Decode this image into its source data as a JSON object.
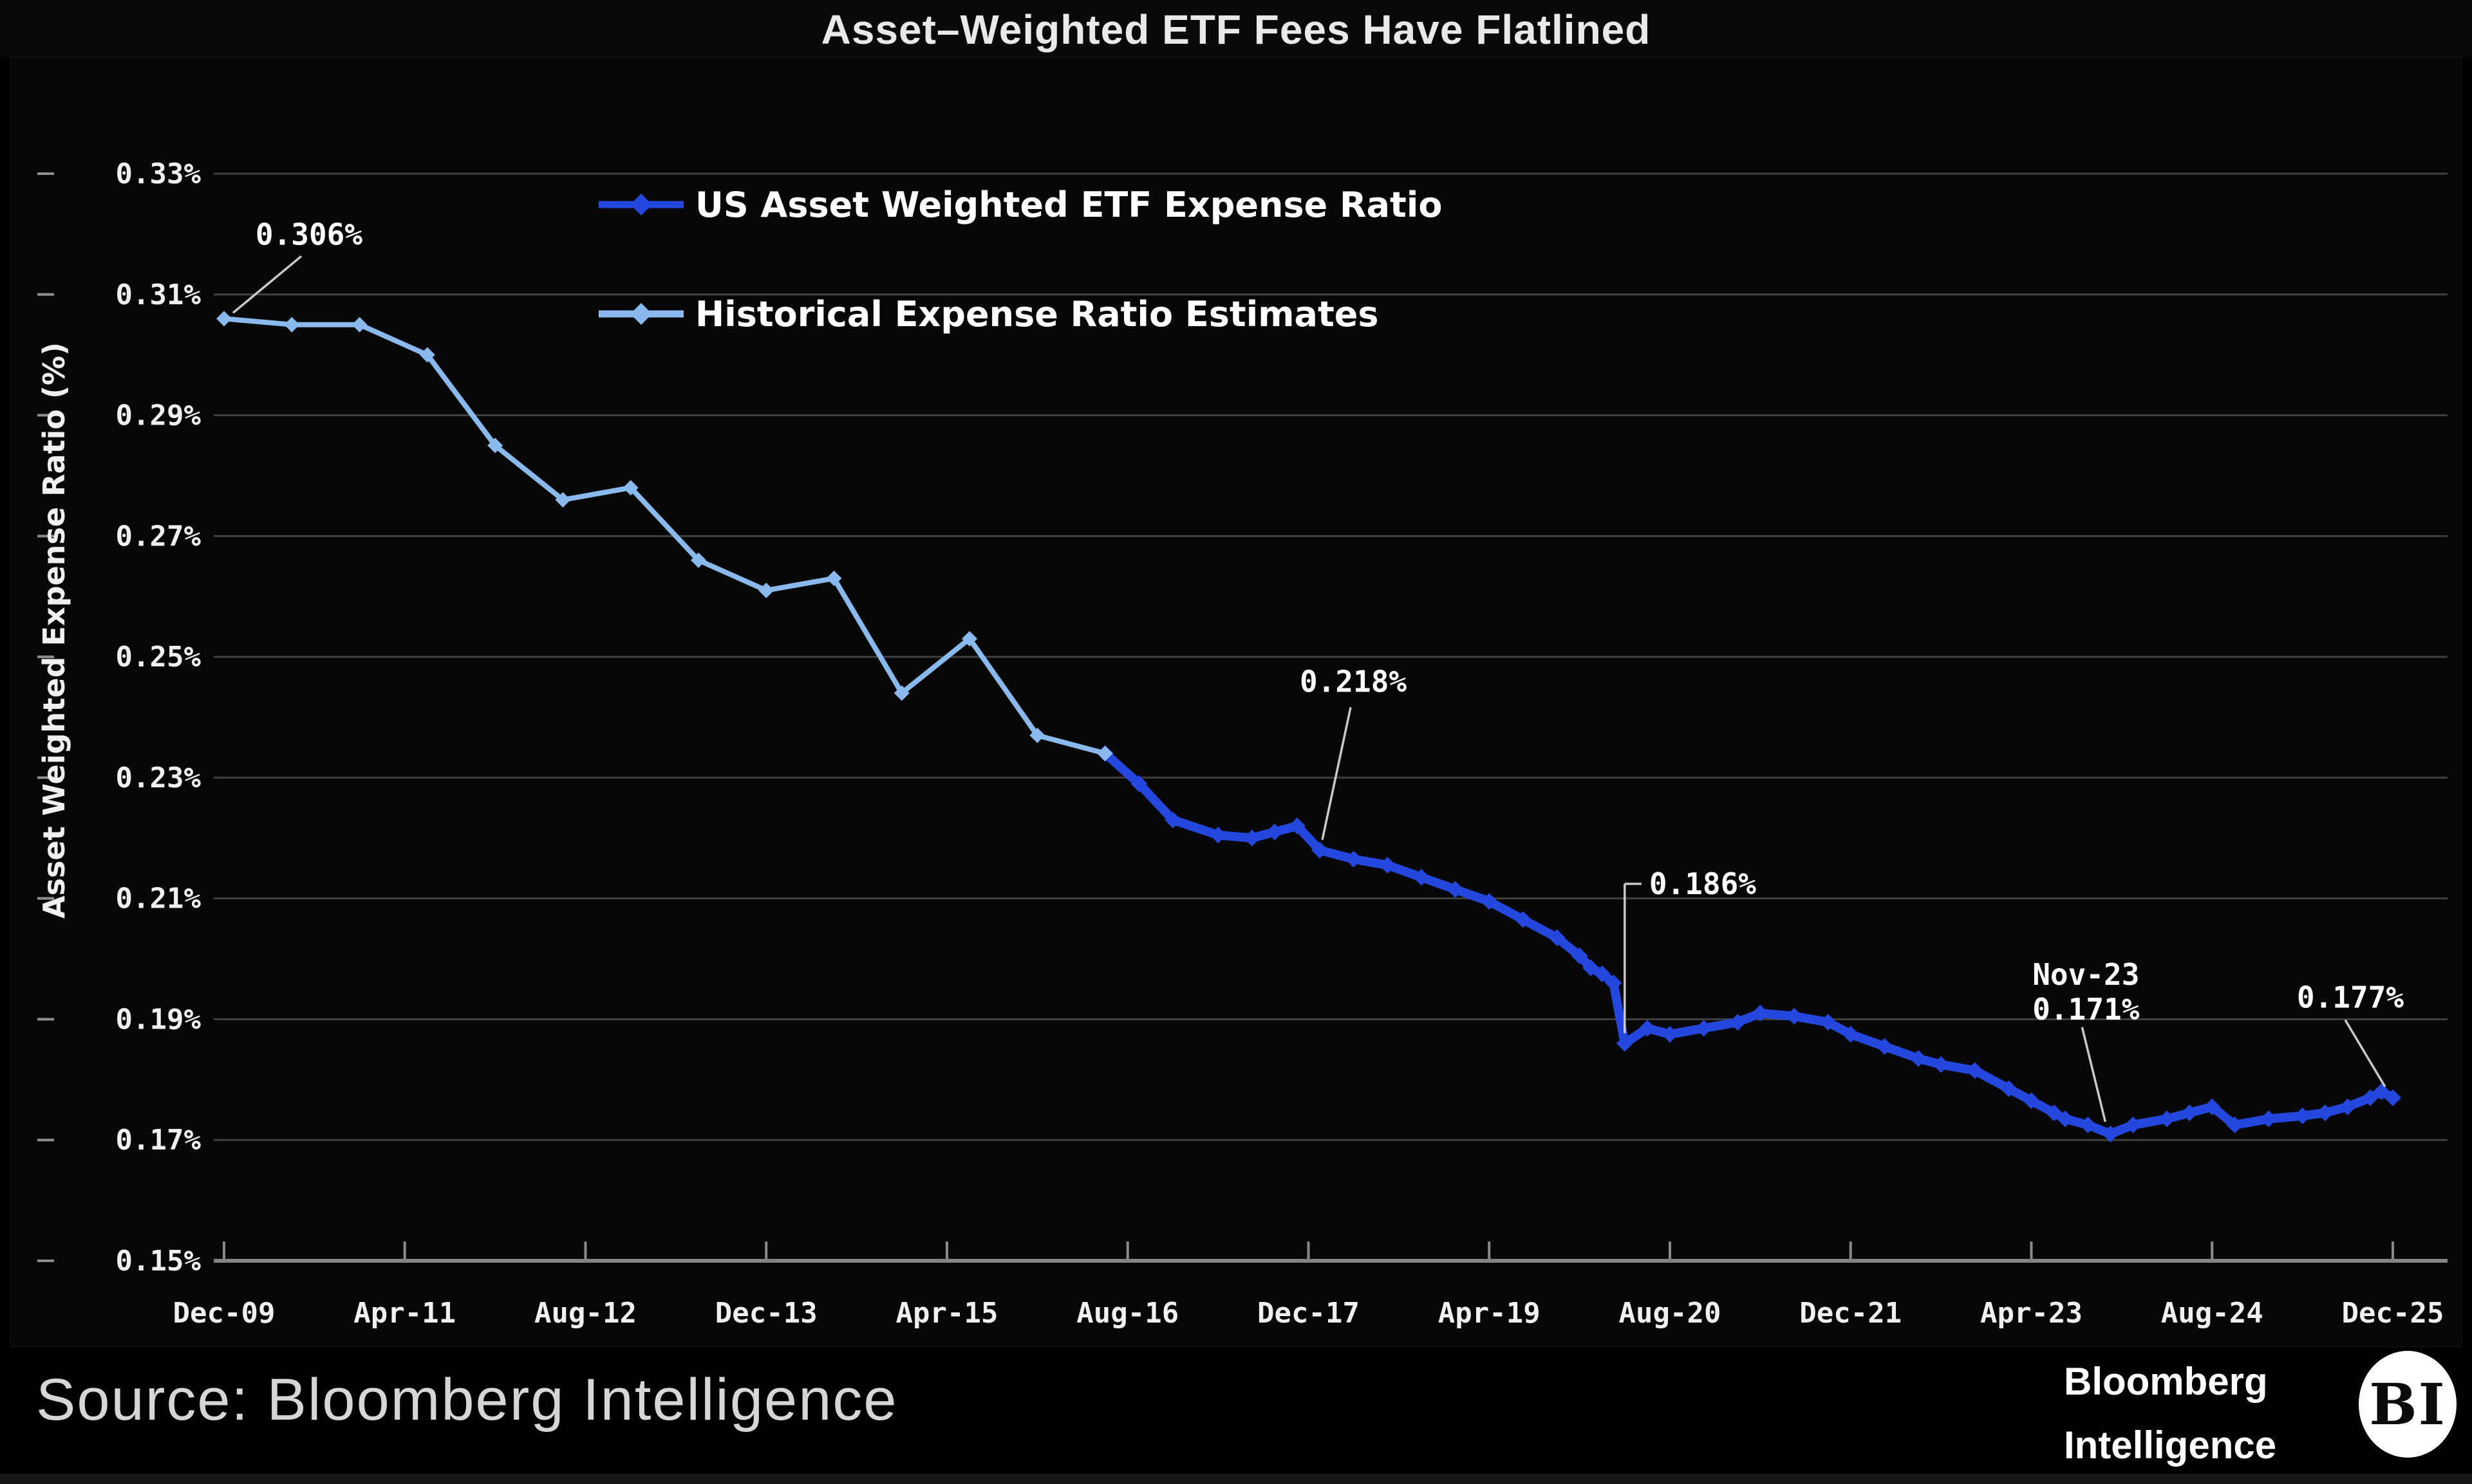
{
  "header": {
    "title": "Asset–Weighted ETF Fees Have Flatlined"
  },
  "footer": {
    "source_label": "Source: Bloomberg Intelligence",
    "brand_line1": "Bloomberg",
    "brand_line2": "Intelligence",
    "brand_badge": "BI"
  },
  "colors": {
    "background": "#000000",
    "panel": "#070707",
    "gridline": "#404040",
    "axis_line": "#828282",
    "callout": "#c9c9c9",
    "text": "#f0f0f0",
    "us_series": "#2447dd",
    "historical_series": "#8abaed"
  },
  "chart_data": {
    "type": "line",
    "title": "Asset–Weighted ETF Fees Have Flatlined",
    "xlabel": "",
    "ylabel": "Asset Weighted Expense Ratio (%)",
    "ylim": [
      0.15,
      0.33
    ],
    "grid": "horizontal",
    "legend_position": "top-left-inside",
    "x_unit": "months since Dec-2009",
    "yticks": [
      {
        "v": 0.33,
        "label": "0.33%"
      },
      {
        "v": 0.31,
        "label": "0.31%"
      },
      {
        "v": 0.29,
        "label": "0.29%"
      },
      {
        "v": 0.27,
        "label": "0.27%"
      },
      {
        "v": 0.25,
        "label": "0.25%"
      },
      {
        "v": 0.23,
        "label": "0.23%"
      },
      {
        "v": 0.21,
        "label": "0.21%"
      },
      {
        "v": 0.19,
        "label": "0.19%"
      },
      {
        "v": 0.17,
        "label": "0.17%"
      },
      {
        "v": 0.15,
        "label": "0.15%"
      }
    ],
    "xticks": [
      {
        "m": 0,
        "label": "Dec-09"
      },
      {
        "m": 16,
        "label": "Apr-11"
      },
      {
        "m": 32,
        "label": "Aug-12"
      },
      {
        "m": 48,
        "label": "Dec-13"
      },
      {
        "m": 64,
        "label": "Apr-15"
      },
      {
        "m": 80,
        "label": "Aug-16"
      },
      {
        "m": 96,
        "label": "Dec-17"
      },
      {
        "m": 112,
        "label": "Apr-19"
      },
      {
        "m": 128,
        "label": "Aug-20"
      },
      {
        "m": 144,
        "label": "Dec-21"
      },
      {
        "m": 160,
        "label": "Apr-23"
      },
      {
        "m": 176,
        "label": "Aug-24"
      },
      {
        "m": 192,
        "label": "Dec-25"
      }
    ],
    "series": [
      {
        "name": "US Asset Weighted ETF Expense Ratio",
        "color": "#2447dd",
        "x_months": [
          78,
          81,
          84,
          88,
          91,
          93,
          95,
          97,
          100,
          103,
          106,
          109,
          112,
          115,
          118,
          120,
          121,
          122,
          123,
          124,
          126,
          128,
          131,
          134,
          136,
          139,
          142,
          144,
          147,
          150,
          152,
          155,
          158,
          160,
          162,
          163,
          165,
          167,
          169,
          172,
          174,
          176,
          178,
          181,
          184,
          186,
          188,
          190,
          191,
          192
        ],
        "values": [
          0.234,
          0.229,
          0.223,
          0.2205,
          0.22,
          0.221,
          0.222,
          0.218,
          0.2165,
          0.2155,
          0.2135,
          0.2115,
          0.2095,
          0.2065,
          0.2035,
          0.2005,
          0.1985,
          0.1975,
          0.196,
          0.186,
          0.1885,
          0.1875,
          0.1885,
          0.1895,
          0.191,
          0.1905,
          0.1895,
          0.1875,
          0.1855,
          0.1835,
          0.1825,
          0.1815,
          0.1785,
          0.1765,
          0.1745,
          0.1735,
          0.1725,
          0.171,
          0.1725,
          0.1735,
          0.1745,
          0.1755,
          0.1725,
          0.1735,
          0.174,
          0.1745,
          0.1755,
          0.177,
          0.178,
          0.177
        ]
      },
      {
        "name": "Historical Expense Ratio Estimates",
        "color": "#8abaed",
        "x_months": [
          0,
          6,
          12,
          18,
          24,
          30,
          36,
          42,
          48,
          54,
          60,
          66,
          72,
          78
        ],
        "values": [
          0.306,
          0.305,
          0.305,
          0.3,
          0.285,
          0.276,
          0.278,
          0.266,
          0.261,
          0.263,
          0.244,
          0.253,
          0.237,
          0.234
        ]
      }
    ],
    "annotations": [
      {
        "text": "0.306%",
        "anchor_m": 0,
        "anchor_v": 0.306
      },
      {
        "text": "0.218%",
        "anchor_m": 97,
        "anchor_v": 0.218
      },
      {
        "text": "0.186%",
        "anchor_m": 124,
        "anchor_v": 0.186
      },
      {
        "text": "Nov-23",
        "text2": "0.171%",
        "anchor_m": 167,
        "anchor_v": 0.171
      },
      {
        "text": "0.177%",
        "anchor_m": 192,
        "anchor_v": 0.177
      }
    ]
  }
}
